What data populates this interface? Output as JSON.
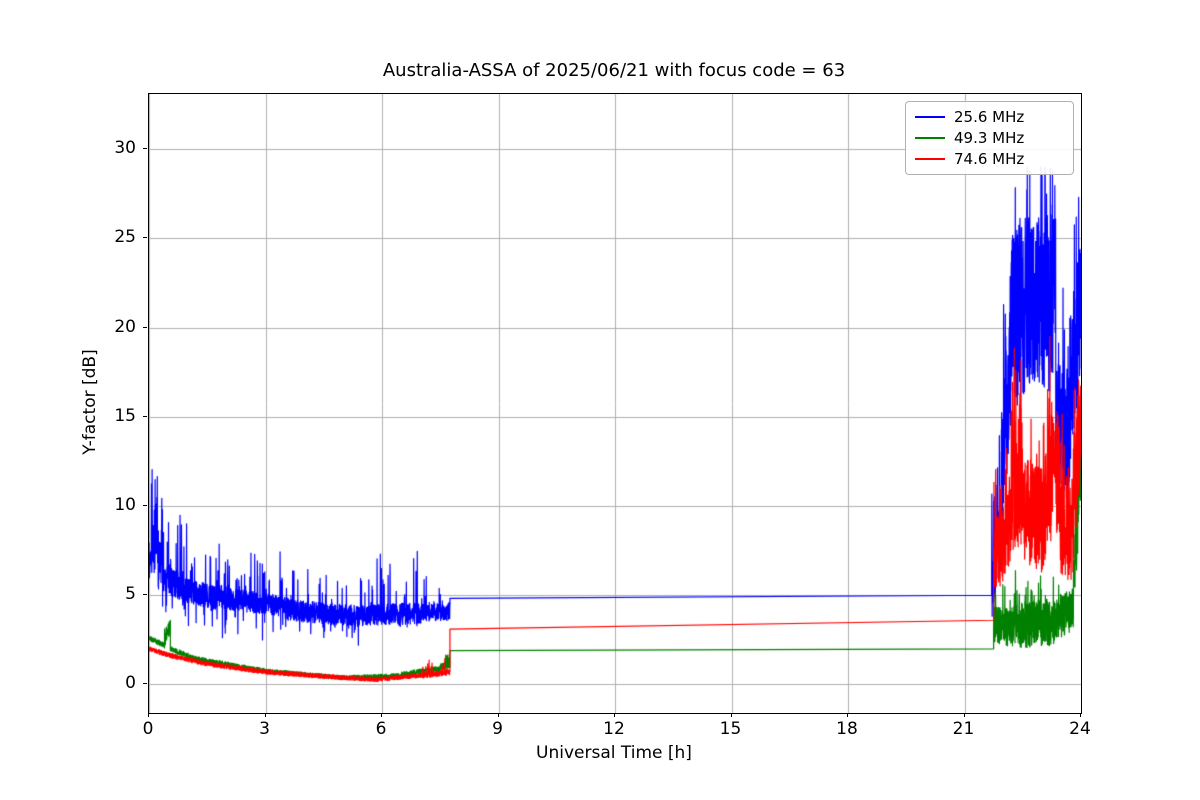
{
  "chart_data": {
    "type": "line",
    "title": "Australia-ASSA of 2025/06/21 with focus code = 63",
    "xlabel": "Universal Time [h]",
    "ylabel": "Y-factor [dB]",
    "xlim": [
      0,
      24
    ],
    "ylim": [
      -1.6,
      33.1
    ],
    "xticks": [
      0,
      3,
      6,
      9,
      12,
      15,
      18,
      21,
      24
    ],
    "yticks": [
      0,
      5,
      10,
      15,
      20,
      25,
      30
    ],
    "grid": true,
    "grid_color": "#b0b0b0",
    "background": "#ffffff",
    "legend": {
      "position": "upper right"
    },
    "series": [
      {
        "name": "25.6 MHz",
        "color": "#0000ff",
        "seed": 7,
        "description": "Noisy 4-6 dB with spikes to 14 dB before 07:45 UT, flat 4.8-5.0 dB until 21:42 UT, then noisy 9-29 dB burst until 24:00 UT",
        "segments": [
          {
            "x0": 0.0,
            "x1": 0.06,
            "y0": 6.2,
            "y1": 7.2,
            "noise": 0.7,
            "spike_p": 0.15,
            "spike_a": 2.5,
            "dip_p": 0.05,
            "dip_a": 1.0
          },
          {
            "x0": 0.06,
            "x1": 0.35,
            "y0": 8.0,
            "y1": 6.3,
            "noise": 1.8,
            "spike_p": 0.3,
            "spike_a": 5.0,
            "dip_p": 0.1,
            "dip_a": 2.0,
            "max": 14.0
          },
          {
            "x0": 0.35,
            "x1": 1.0,
            "y0": 6.0,
            "y1": 5.2,
            "noise": 0.8,
            "spike_p": 0.12,
            "spike_a": 3.5,
            "dip_p": 0.08,
            "dip_a": 2.0
          },
          {
            "x0": 1.0,
            "x1": 2.0,
            "y0": 5.2,
            "y1": 4.8,
            "noise": 0.7,
            "spike_p": 0.1,
            "spike_a": 3.0,
            "dip_p": 0.06,
            "dip_a": 2.2
          },
          {
            "x0": 2.0,
            "x1": 3.5,
            "y0": 4.8,
            "y1": 4.4,
            "noise": 0.6,
            "spike_p": 0.08,
            "spike_a": 2.6,
            "dip_p": 0.05,
            "dip_a": 1.8
          },
          {
            "x0": 3.5,
            "x1": 5.5,
            "y0": 4.2,
            "y1": 3.8,
            "noise": 0.6,
            "spike_p": 0.07,
            "spike_a": 2.4,
            "dip_p": 0.04,
            "dip_a": 1.2
          },
          {
            "x0": 5.5,
            "x1": 7.0,
            "y0": 3.9,
            "y1": 4.0,
            "noise": 0.6,
            "spike_p": 0.07,
            "spike_a": 3.2,
            "dip_p": 0.03,
            "dip_a": 1.0,
            "max": 9.0
          },
          {
            "x0": 7.0,
            "x1": 7.75,
            "y0": 4.0,
            "y1": 4.1,
            "noise": 0.5,
            "spike_p": 0.05,
            "spike_a": 2.0
          },
          {
            "x0": 7.75,
            "x1": 21.7,
            "y0": 4.83,
            "y1": 5.0,
            "noise": 0
          },
          {
            "x0": 21.7,
            "x1": 21.95,
            "y0": 5.6,
            "y1": 9.0,
            "noise": 2.0,
            "spike_p": 0.2,
            "spike_a": 5.0
          },
          {
            "x0": 21.95,
            "x1": 22.2,
            "y0": 11.0,
            "y1": 19.0,
            "noise": 4.0,
            "spike_p": 0.2,
            "spike_a": 6.0,
            "max": 28.5
          },
          {
            "x0": 22.2,
            "x1": 23.35,
            "y0": 21.0,
            "y1": 21.5,
            "noise": 5.0,
            "spike_p": 0.15,
            "spike_a": 6.0,
            "dip_p": 0.1,
            "dip_a": 8.0,
            "max": 29.0,
            "min": 9.0
          },
          {
            "x0": 23.35,
            "x1": 23.7,
            "y0": 15.0,
            "y1": 13.5,
            "noise": 4.0,
            "spike_p": 0.12,
            "spike_a": 6.0,
            "dip_p": 0.08,
            "dip_a": 5.0
          },
          {
            "x0": 23.7,
            "x1": 24.0,
            "y0": 16.0,
            "y1": 21.0,
            "noise": 4.5,
            "spike_p": 0.15,
            "spike_a": 5.0,
            "max": 28.0
          }
        ]
      },
      {
        "name": "49.3 MHz",
        "color": "#008000",
        "seed": 21,
        "description": "Declines 2.6 to 0.4 dB over 0-5 UT, small rise to ~1 dB by 07:45, flat 1.9-2.0 dB until 21:45 UT, noisy 2-6.5 dB after, end spike to ~15 dB",
        "segments": [
          {
            "x0": 0.0,
            "x1": 0.4,
            "y0": 2.6,
            "y1": 2.2,
            "noise": 0.15
          },
          {
            "x0": 0.4,
            "x1": 0.55,
            "y0": 2.5,
            "y1": 3.0,
            "noise": 0.35,
            "spike_p": 0.3,
            "spike_a": 0.6,
            "max": 3.6
          },
          {
            "x0": 0.55,
            "x1": 1.2,
            "y0": 2.0,
            "y1": 1.45,
            "noise": 0.15
          },
          {
            "x0": 1.2,
            "x1": 3.0,
            "y0": 1.45,
            "y1": 0.75,
            "noise": 0.13
          },
          {
            "x0": 3.0,
            "x1": 5.0,
            "y0": 0.75,
            "y1": 0.38,
            "noise": 0.12,
            "min": 0.05
          },
          {
            "x0": 5.0,
            "x1": 6.5,
            "y0": 0.38,
            "y1": 0.5,
            "noise": 0.12,
            "min": 0.05
          },
          {
            "x0": 6.5,
            "x1": 7.5,
            "y0": 0.55,
            "y1": 0.9,
            "noise": 0.15
          },
          {
            "x0": 7.5,
            "x1": 7.75,
            "y0": 0.95,
            "y1": 1.15,
            "noise": 0.2,
            "spike_p": 0.2,
            "spike_a": 0.5
          },
          {
            "x0": 7.75,
            "x1": 21.75,
            "y0": 1.9,
            "y1": 2.0,
            "noise": 0
          },
          {
            "x0": 21.75,
            "x1": 22.3,
            "y0": 3.4,
            "y1": 3.2,
            "noise": 1.1,
            "spike_p": 0.15,
            "spike_a": 1.8,
            "min": 2.0,
            "max": 6.3
          },
          {
            "x0": 22.3,
            "x1": 23.3,
            "y0": 3.3,
            "y1": 3.5,
            "noise": 1.3,
            "spike_p": 0.12,
            "spike_a": 2.4,
            "min": 2.0,
            "max": 6.6
          },
          {
            "x0": 23.3,
            "x1": 23.8,
            "y0": 3.6,
            "y1": 4.2,
            "noise": 1.2,
            "spike_p": 0.1,
            "spike_a": 2.0,
            "min": 2.0
          },
          {
            "x0": 23.8,
            "x1": 24.0,
            "y0": 5.5,
            "y1": 13.0,
            "noise": 2.5,
            "spike_p": 0.2,
            "spike_a": 3.0,
            "max": 15.5
          }
        ]
      },
      {
        "name": "74.6 MHz",
        "color": "#ff0000",
        "seed": 33,
        "description": "Declines 2.0 to 0.3 dB over 0-6 UT, rises to ~0.7 dB by 07:45, step to flat 3.1 rising to 3.6 dB until 21:45 UT, then noisy 6-23.5 dB burst until 24:00 UT",
        "segments": [
          {
            "x0": 0.0,
            "x1": 0.5,
            "y0": 2.0,
            "y1": 1.65,
            "noise": 0.13
          },
          {
            "x0": 0.5,
            "x1": 1.5,
            "y0": 1.65,
            "y1": 1.15,
            "noise": 0.13
          },
          {
            "x0": 1.5,
            "x1": 3.0,
            "y0": 1.15,
            "y1": 0.7,
            "noise": 0.13
          },
          {
            "x0": 3.0,
            "x1": 4.5,
            "y0": 0.7,
            "y1": 0.45,
            "noise": 0.12,
            "min": 0.03
          },
          {
            "x0": 4.5,
            "x1": 5.8,
            "y0": 0.45,
            "y1": 0.28,
            "noise": 0.12,
            "min": 0.02
          },
          {
            "x0": 5.8,
            "x1": 7.0,
            "y0": 0.28,
            "y1": 0.5,
            "noise": 0.12,
            "min": 0.03
          },
          {
            "x0": 7.0,
            "x1": 7.75,
            "y0": 0.5,
            "y1": 0.7,
            "noise": 0.16,
            "spike_p": 0.1,
            "spike_a": 0.7
          },
          {
            "x0": 7.75,
            "x1": 21.75,
            "y0": 3.1,
            "y1": 3.6,
            "noise": 0
          },
          {
            "x0": 21.75,
            "x1": 22.2,
            "y0": 6.8,
            "y1": 9.0,
            "noise": 2.2,
            "spike_p": 0.15,
            "spike_a": 4.0,
            "min": 5.5
          },
          {
            "x0": 22.2,
            "x1": 22.5,
            "y0": 11.0,
            "y1": 12.0,
            "noise": 4.0,
            "spike_p": 0.2,
            "spike_a": 8.0,
            "max": 23.5,
            "min": 6.0
          },
          {
            "x0": 22.5,
            "x1": 23.1,
            "y0": 10.0,
            "y1": 9.0,
            "noise": 3.0,
            "spike_p": 0.15,
            "spike_a": 5.0,
            "min": 6.0
          },
          {
            "x0": 23.1,
            "x1": 23.45,
            "y0": 11.0,
            "y1": 12.0,
            "noise": 3.5,
            "spike_p": 0.2,
            "spike_a": 6.0,
            "max": 19.5,
            "min": 6.5
          },
          {
            "x0": 23.45,
            "x1": 23.8,
            "y0": 9.0,
            "y1": 8.5,
            "noise": 3.0,
            "spike_p": 0.1,
            "spike_a": 4.0,
            "min": 5.5
          },
          {
            "x0": 23.8,
            "x1": 24.0,
            "y0": 10.0,
            "y1": 15.5,
            "noise": 3.5,
            "spike_p": 0.15,
            "spike_a": 4.0,
            "max": 20.0,
            "min": 7.0
          }
        ]
      }
    ]
  }
}
